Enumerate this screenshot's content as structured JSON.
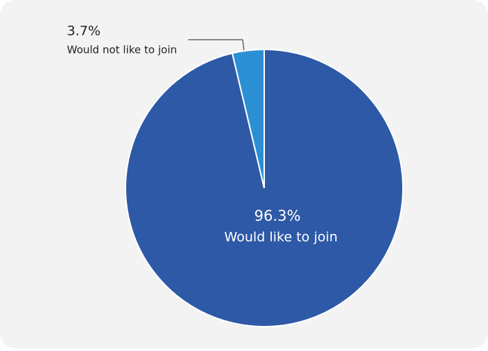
{
  "chart_data": {
    "type": "pie",
    "categories": [
      "Would like to join",
      "Would not like to join"
    ],
    "values": [
      96.3,
      3.7
    ],
    "value_labels": [
      "96.3%",
      "3.7%"
    ],
    "colors": [
      "#2d59a6",
      "#2b8fd4"
    ]
  }
}
